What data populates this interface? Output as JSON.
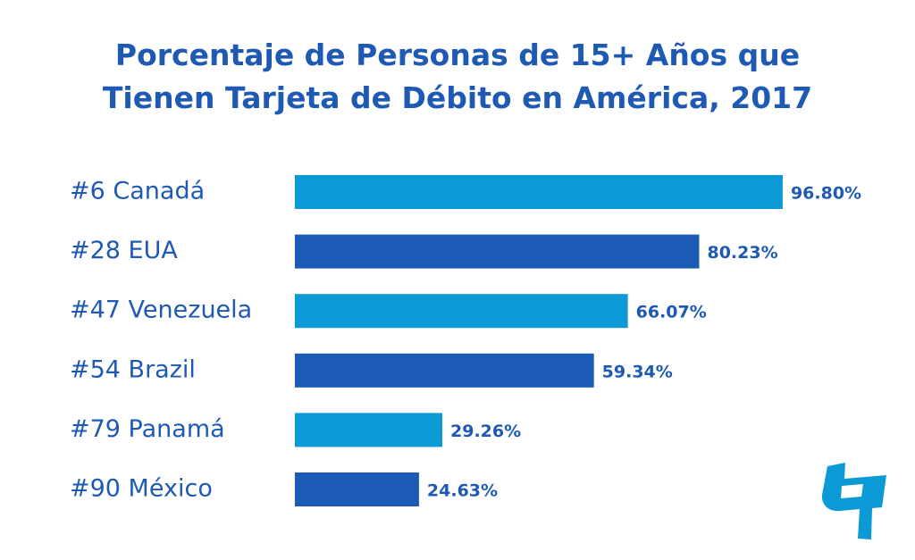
{
  "chart_data": {
    "type": "bar",
    "orientation": "horizontal",
    "title": "Porcentaje de Personas de 15+ Años que Tienen Tarjeta de Débito en América, 2017",
    "title_lines": [
      "Porcentaje de Personas de 15+ Años que",
      "Tienen Tarjeta de Débito en América, 2017"
    ],
    "categories": [
      "#6 Canadá",
      "#28 EUA",
      "#47 Venezuela",
      "#54 Brazil",
      "#79 Panamá",
      "#90 México"
    ],
    "values": [
      96.8,
      80.23,
      66.07,
      59.34,
      29.26,
      24.63
    ],
    "value_labels": [
      "96.80%",
      "80.23%",
      "66.07%",
      "59.34%",
      "29.26%",
      "24.63%"
    ],
    "xlim": [
      0,
      100
    ],
    "grid": false,
    "legend": "none",
    "bar_colors": [
      "#0b9ad6",
      "#1b5bb5",
      "#0b9ad6",
      "#1b5bb5",
      "#0b9ad6",
      "#1b5bb5"
    ],
    "text_color": "#1e5ab4"
  },
  "logo": {
    "icon": "brand-logo-icon",
    "color": "#0b9ad6"
  }
}
